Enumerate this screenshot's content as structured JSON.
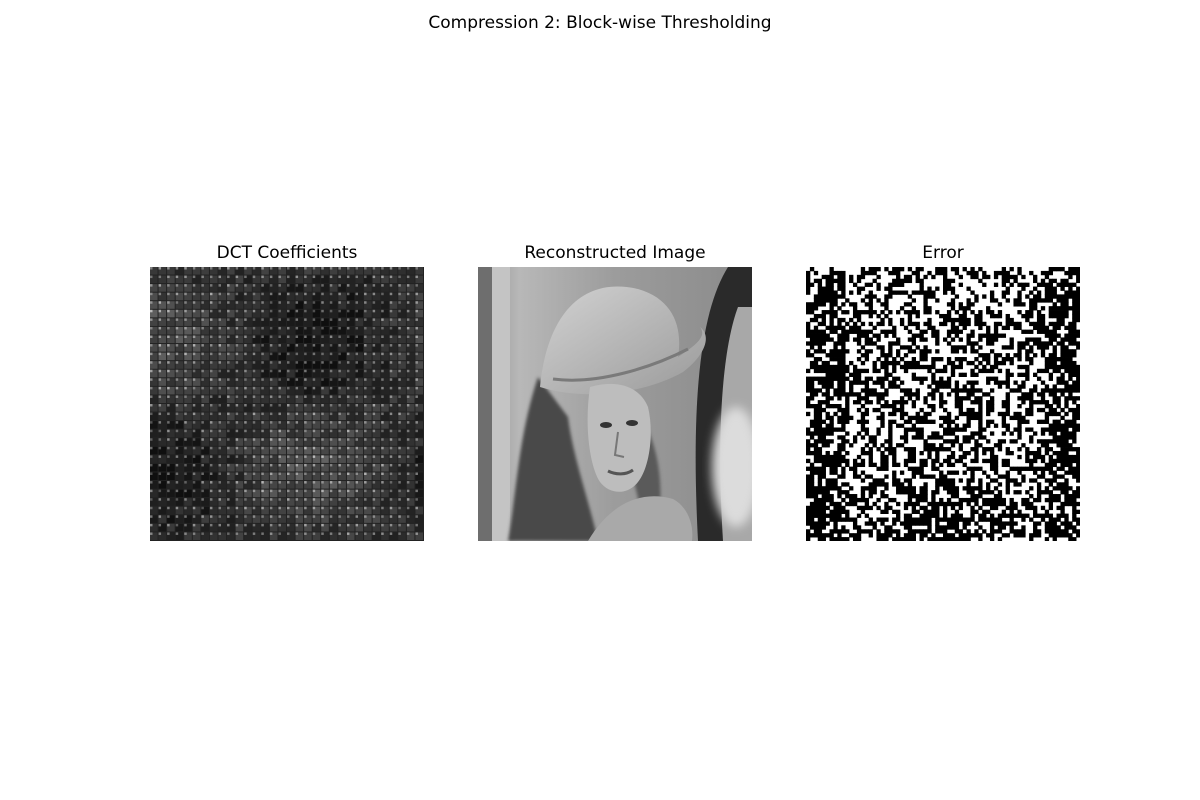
{
  "figure": {
    "title": "Compression 2: Block-wise Thresholding"
  },
  "panels": [
    {
      "title": "DCT Coefficients",
      "content": "dct-coefficient-image",
      "colormap": "gray"
    },
    {
      "title": "Reconstructed Image",
      "content": "reconstructed-portrait-image",
      "colormap": "gray"
    },
    {
      "title": "Error",
      "content": "error-map-image",
      "colormap": "binary"
    }
  ],
  "colors": {
    "background": "#ffffff",
    "text": "#000000"
  }
}
